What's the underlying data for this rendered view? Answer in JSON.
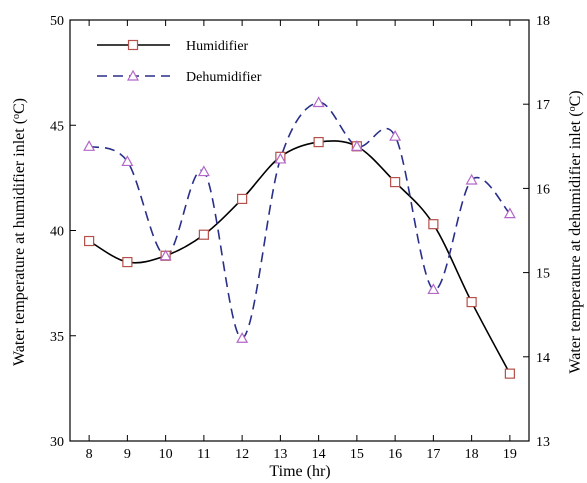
{
  "chart_data": {
    "type": "line",
    "xlabel": "Time (hr)",
    "ylabel_left": "Water temperature at humidifier inlet (",
    "ylabel_right": "Water temperature at dehumidifier inlet (",
    "degree_mark": "o",
    "unit_suffix": "C)",
    "x_ticks": [
      "8",
      "9",
      "10",
      "11",
      "12",
      "13",
      "14",
      "15",
      "16",
      "17",
      "18",
      "19"
    ],
    "y_left_ticks": [
      "30",
      "35",
      "40",
      "45",
      "50"
    ],
    "y_right_ticks": [
      "13",
      "14",
      "15",
      "16",
      "17",
      "18"
    ],
    "xlim": [
      7.5,
      19.5
    ],
    "ylim_left": [
      30,
      50
    ],
    "ylim_right": [
      13,
      18
    ],
    "grid": false,
    "legend_position": "top-left",
    "series": [
      {
        "name": "Humidifier",
        "axis": "left",
        "marker": "square",
        "line_style": "solid",
        "color": "#000000",
        "marker_color": "#b5504a",
        "x": [
          8,
          9,
          10,
          11,
          12,
          13,
          14,
          15,
          16,
          17,
          18,
          19
        ],
        "y": [
          39.5,
          38.5,
          38.8,
          39.8,
          41.5,
          43.5,
          44.2,
          44.0,
          42.3,
          40.3,
          36.6,
          33.2
        ]
      },
      {
        "name": "Dehumidifier",
        "axis": "right",
        "marker": "triangle",
        "line_style": "dashed",
        "color": "#2a2f8a",
        "marker_color": "#b267c9",
        "x": [
          8,
          9,
          10,
          11,
          12,
          13,
          14,
          15,
          16,
          17,
          18,
          19
        ],
        "y": [
          16.5,
          16.32,
          15.2,
          16.2,
          14.22,
          16.35,
          17.02,
          16.5,
          16.62,
          14.8,
          16.1,
          15.7
        ]
      }
    ]
  }
}
